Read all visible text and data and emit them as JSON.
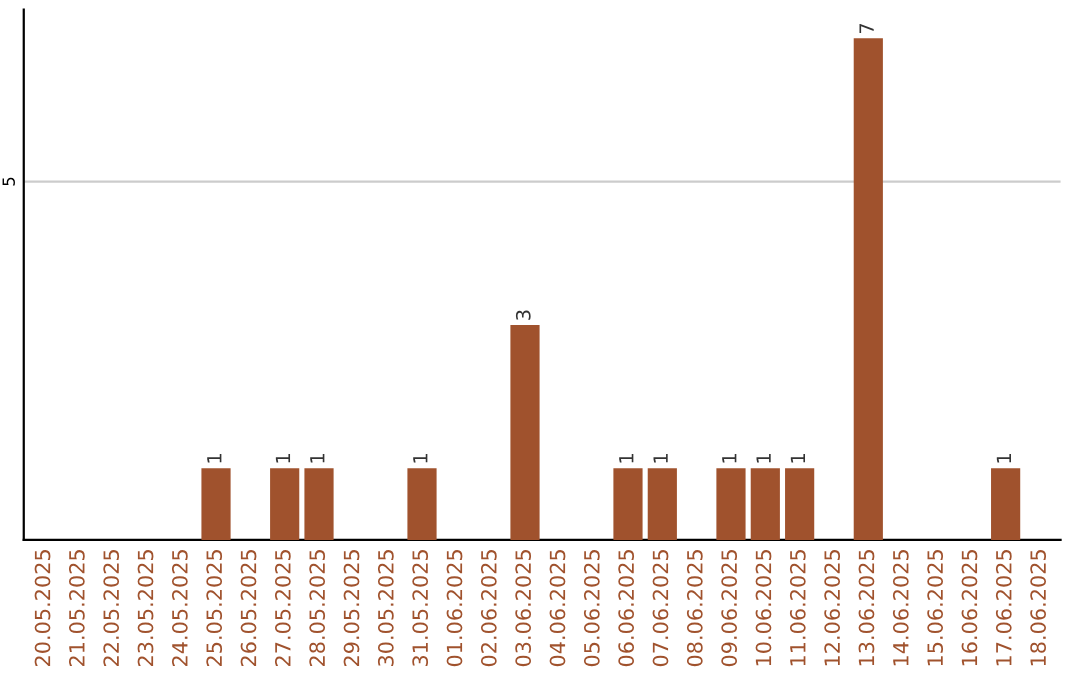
{
  "chart_data": {
    "type": "bar",
    "categories": [
      "20.05.2025",
      "21.05.2025",
      "22.05.2025",
      "23.05.2025",
      "24.05.2025",
      "25.05.2025",
      "26.05.2025",
      "27.05.2025",
      "28.05.2025",
      "29.05.2025",
      "30.05.2025",
      "31.05.2025",
      "01.06.2025",
      "02.06.2025",
      "03.06.2025",
      "04.06.2025",
      "05.06.2025",
      "06.06.2025",
      "07.06.2025",
      "08.06.2025",
      "09.06.2025",
      "10.06.2025",
      "11.06.2025",
      "12.06.2025",
      "13.06.2025",
      "14.06.2025",
      "15.06.2025",
      "16.06.2025",
      "17.06.2025",
      "18.06.2025"
    ],
    "values": [
      0,
      0,
      0,
      0,
      0,
      1,
      0,
      1,
      1,
      0,
      0,
      1,
      0,
      0,
      3,
      0,
      0,
      1,
      1,
      0,
      1,
      1,
      1,
      0,
      7,
      0,
      0,
      0,
      1,
      0
    ],
    "value_labels": [
      null,
      null,
      null,
      null,
      null,
      "1",
      null,
      "1",
      "1",
      null,
      null,
      "1",
      null,
      null,
      "3",
      null,
      null,
      "1",
      "1",
      null,
      "1",
      "1",
      "1",
      null,
      "7",
      null,
      null,
      null,
      "1",
      null
    ],
    "color": "#a0522d",
    "ylim": [
      0,
      7.4
    ],
    "yticks": [
      5
    ],
    "grid": "y",
    "legend": false
  }
}
